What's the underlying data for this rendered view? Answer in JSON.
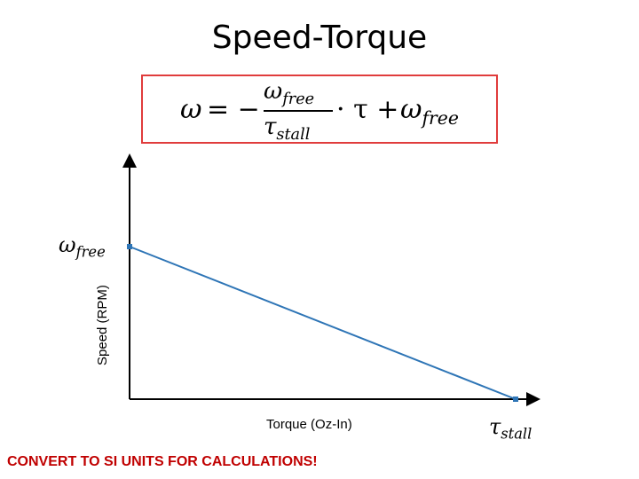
{
  "title": "Speed-Torque",
  "formula": {
    "lhs": "ω",
    "equals_minus": "= −",
    "numerator_symbol": "ω",
    "numerator_sub": "free",
    "denominator_symbol": "τ",
    "denominator_sub": "stall",
    "dot_tau": "· τ +",
    "tail_symbol": "ω",
    "tail_sub": "free"
  },
  "axes": {
    "ylabel": "Speed (RPM)",
    "xlabel": "Torque (Oz-In)",
    "y_tick_symbol": "ω",
    "y_tick_sub": "free",
    "x_tick_symbol": "τ",
    "x_tick_sub": "stall"
  },
  "chart_data": {
    "type": "line",
    "title": "Speed-Torque",
    "xlabel": "Torque (Oz-In)",
    "ylabel": "Speed (RPM)",
    "x": [
      0,
      1
    ],
    "series": [
      {
        "values": [
          1,
          0
        ]
      }
    ],
    "xlim": [
      0,
      1.1
    ],
    "ylim": [
      0,
      1.5
    ],
    "line_color": "#2e75b6"
  },
  "footer_note": "CONVERT TO SI UNITS FOR CALCULATIONS!"
}
